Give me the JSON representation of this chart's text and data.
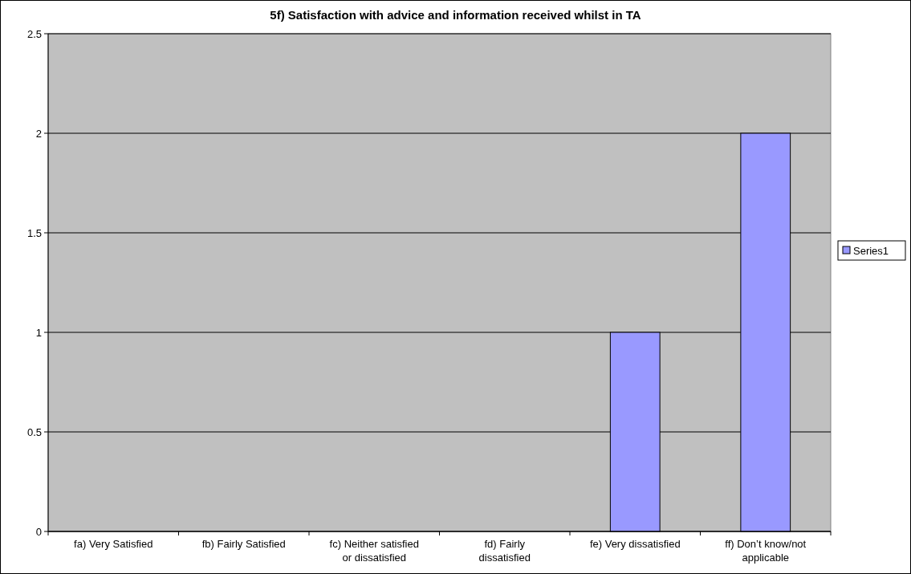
{
  "chart_data": {
    "type": "bar",
    "title": "5f) Satisfaction with advice and information received whilst in TA",
    "categories": [
      "fa) Very Satisfied",
      "fb) Fairly Satisfied",
      "fc) Neither satisfied or dissatisfied",
      "fd) Fairly dissatisfied",
      "fe) Very dissatisfied",
      "ff) Don’t know/not applicable"
    ],
    "series": [
      {
        "name": "Series1",
        "color": "#9999ff",
        "values": [
          0,
          0,
          0,
          0,
          1,
          2
        ]
      }
    ],
    "ylim": [
      0,
      2.5
    ],
    "yticks": [
      0,
      0.5,
      1,
      1.5,
      2,
      2.5
    ],
    "grid": "y",
    "legend": "right"
  }
}
